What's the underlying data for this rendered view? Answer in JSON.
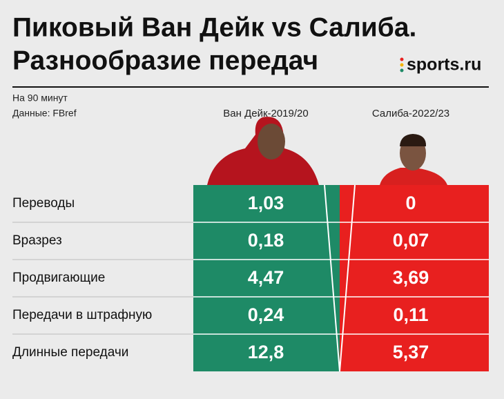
{
  "header": {
    "title_line1": "Пиковый Ван Дейк vs Салиба.",
    "title_line2": "Разнообразие передач",
    "logo": "sports.ru"
  },
  "notes": {
    "per": "На 90 минут",
    "source": "Данные: FBref"
  },
  "table": {
    "columns": [
      "Ван Дейк-2019/20",
      "Салиба-2022/23"
    ],
    "rows": [
      [
        "Переводы",
        "1,03",
        "0"
      ],
      [
        "Вразрез",
        "0,18",
        "0,07"
      ],
      [
        "Продвигающие",
        "4,47",
        "3,69"
      ],
      [
        "Передачи в штрафную",
        "0,24",
        "0,11"
      ],
      [
        "Длинные передачи",
        "12,8",
        "5,37"
      ]
    ]
  }
}
